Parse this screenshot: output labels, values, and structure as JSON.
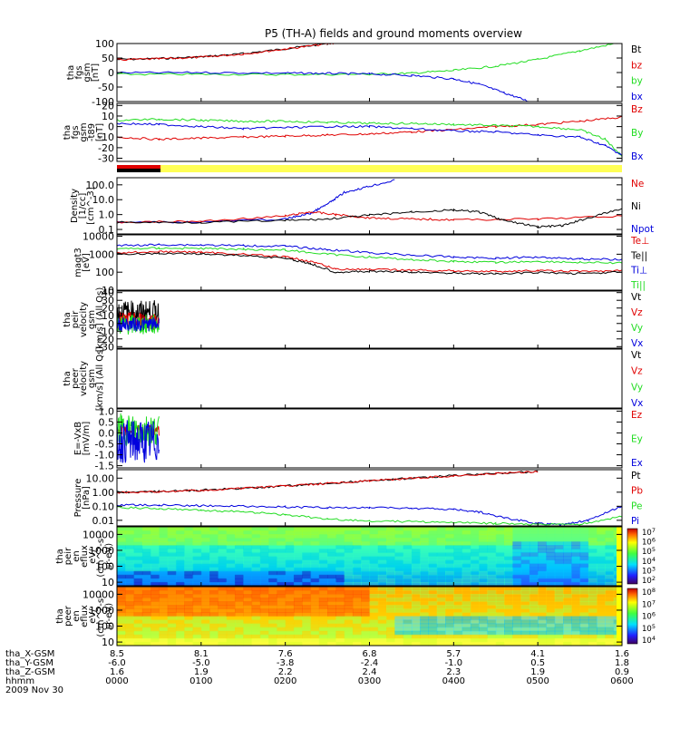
{
  "title": "P5 (TH-A) fields and ground moments overview",
  "colors": {
    "black": "#000000",
    "red": "#e00000",
    "green": "#22dd22",
    "blue": "#0000dd",
    "yellow": "#ffff55"
  },
  "chart_data": [
    {
      "id": "p1",
      "type": "line",
      "ylabel_lines": [
        "tha",
        "fgs",
        "gsm",
        "[nT]"
      ],
      "yticks": [
        [
          "100",
          100
        ],
        [
          "50",
          50
        ],
        [
          "0",
          0
        ],
        [
          "-50",
          -50
        ],
        [
          "-100",
          -100
        ]
      ],
      "ylim": [
        -100,
        100
      ],
      "legend": [
        "Bt",
        "bz",
        "by",
        "bx"
      ],
      "series": [
        {
          "name": "Bt",
          "color": "black",
          "x": [
            0,
            0.5,
            1,
            1.5,
            2,
            2.5,
            2.8
          ],
          "y": [
            45,
            48,
            54,
            65,
            82,
            100,
            110
          ]
        },
        {
          "name": "bz",
          "color": "red",
          "x": [
            0,
            0.5,
            1,
            1.5,
            2,
            2.5,
            2.8
          ],
          "y": [
            44,
            47,
            53,
            64,
            81,
            99,
            109
          ]
        },
        {
          "name": "by",
          "color": "green",
          "x": [
            0,
            1,
            2,
            3,
            3.5,
            4,
            4.5,
            5,
            5.5,
            6
          ],
          "y": [
            -6,
            -6,
            -7,
            -6,
            -2,
            7,
            22,
            45,
            75,
            105
          ]
        },
        {
          "name": "bx",
          "color": "blue",
          "x": [
            0,
            1,
            2,
            2.5,
            3,
            3.5,
            4,
            4.3,
            4.6,
            4.9
          ],
          "y": [
            -1,
            0,
            -2,
            -3,
            -5,
            -10,
            -22,
            -40,
            -70,
            -100
          ]
        }
      ]
    },
    {
      "id": "p2",
      "type": "line",
      "ylabel_lines": [
        "tha",
        "fgs",
        "gsm",
        "-t89",
        "[nT]"
      ],
      "yticks": [
        [
          "20",
          20
        ],
        [
          "10",
          10
        ],
        [
          "0",
          0
        ],
        [
          "-10",
          -10
        ],
        [
          "-20",
          -20
        ],
        [
          "-30",
          -30
        ]
      ],
      "ylim": [
        -33,
        22
      ],
      "legend": [
        "Bz",
        "By",
        "Bx"
      ],
      "series": [
        {
          "name": "Bz",
          "color": "red",
          "x": [
            0,
            0.5,
            1,
            1.5,
            2,
            2.5,
            3,
            3.5,
            4,
            4.5,
            5,
            5.5,
            6
          ],
          "y": [
            -10,
            -12,
            -11,
            -10,
            -9,
            -8,
            -7,
            -5,
            -3,
            0,
            2,
            5,
            9
          ]
        },
        {
          "name": "By",
          "color": "green",
          "x": [
            0,
            0.5,
            1,
            1.5,
            2,
            2.5,
            3,
            3.5,
            4,
            4.5,
            5,
            5.5,
            5.8,
            6
          ],
          "y": [
            6,
            7,
            6,
            5,
            5,
            4,
            3,
            3,
            2,
            1,
            0,
            -3,
            -12,
            -28
          ]
        },
        {
          "name": "Bx",
          "color": "blue",
          "x": [
            0,
            0.5,
            1,
            1.5,
            2,
            2.5,
            3,
            3.5,
            4,
            4.5,
            5,
            5.5,
            5.8,
            6
          ],
          "y": [
            3,
            2,
            0,
            -2,
            -1,
            0,
            0,
            -2,
            -4,
            -5,
            -8,
            -10,
            -18,
            -27
          ]
        }
      ]
    },
    {
      "id": "p3",
      "type": "line",
      "log": true,
      "ylabel_lines": [
        "Density",
        "[1/cc]",
        "[cm^-3]"
      ],
      "yticks": [
        [
          "100.0",
          100
        ],
        [
          "10.0",
          10
        ],
        [
          "1.0",
          1
        ],
        [
          "0.1",
          0.1
        ]
      ],
      "ylim": [
        0.05,
        300
      ],
      "legend": [
        "Ne",
        "Ni",
        "Npot"
      ],
      "series": [
        {
          "name": "Npot",
          "color": "blue",
          "x": [
            0,
            1,
            2,
            2.3,
            2.5,
            2.7,
            3,
            3.3
          ],
          "y": [
            0.3,
            0.32,
            0.5,
            1.2,
            5,
            30,
            80,
            200
          ]
        },
        {
          "name": "Ne",
          "color": "red",
          "x": [
            0,
            1,
            2,
            2.3,
            2.6,
            3,
            3.5,
            4,
            5,
            6
          ],
          "y": [
            0.3,
            0.35,
            0.8,
            1.5,
            1.0,
            0.6,
            0.5,
            0.45,
            0.5,
            0.8
          ]
        },
        {
          "name": "Ni",
          "color": "black",
          "x": [
            0,
            1,
            2,
            2.5,
            3,
            3.5,
            4,
            4.3,
            4.6,
            5,
            5.3,
            5.6,
            6
          ],
          "y": [
            0.3,
            0.3,
            0.4,
            0.5,
            0.9,
            1.5,
            2.0,
            1.5,
            0.4,
            0.15,
            0.18,
            0.6,
            2.5
          ]
        }
      ]
    },
    {
      "id": "p4",
      "type": "line",
      "log": true,
      "ylabel_lines": [
        "magt3",
        "[eV]"
      ],
      "yticks": [
        [
          "10000",
          10000
        ],
        [
          "1000",
          1000
        ],
        [
          "100",
          100
        ],
        [
          "10",
          10
        ]
      ],
      "ylim": [
        10,
        12000
      ],
      "legend": [
        "Te⊥",
        "Te||",
        "Ti⊥",
        "Ti||"
      ],
      "series": [
        {
          "name": "Ti⊥",
          "color": "blue",
          "x": [
            0,
            0.5,
            1,
            1.5,
            2,
            2.5,
            3,
            3.5,
            4,
            4.5,
            5,
            5.5,
            6
          ],
          "y": [
            3000,
            3400,
            3300,
            3000,
            2800,
            1800,
            1200,
            900,
            700,
            600,
            700,
            550,
            500
          ]
        },
        {
          "name": "Ti||",
          "color": "green",
          "x": [
            0,
            0.5,
            1,
            1.5,
            2,
            2.5,
            3,
            3.5,
            4,
            4.5,
            5,
            5.5,
            6
          ],
          "y": [
            2000,
            2200,
            2100,
            1900,
            1700,
            1000,
            700,
            500,
            400,
            350,
            400,
            350,
            320
          ]
        },
        {
          "name": "Te⊥",
          "color": "red",
          "x": [
            0,
            0.5,
            1,
            1.5,
            2,
            2.3,
            2.6,
            3,
            3.5,
            4,
            4.5,
            5,
            5.5,
            6
          ],
          "y": [
            1200,
            1400,
            1300,
            1000,
            700,
            400,
            150,
            140,
            130,
            120,
            110,
            120,
            110,
            120
          ]
        },
        {
          "name": "Te||",
          "color": "black",
          "x": [
            0,
            0.5,
            1,
            1.5,
            2,
            2.3,
            2.6,
            3,
            3.5,
            4,
            4.5,
            5,
            5.5,
            6
          ],
          "y": [
            1000,
            1100,
            1050,
            850,
            600,
            300,
            100,
            110,
            100,
            90,
            80,
            95,
            85,
            100
          ]
        }
      ]
    },
    {
      "id": "p5",
      "type": "line",
      "ylabel_lines": [
        "tha",
        "peir",
        "velocity",
        "gsm",
        "[km/s] (All Qs)"
      ],
      "yticks": [
        [
          "40",
          40
        ],
        [
          "30",
          30
        ],
        [
          "20",
          20
        ],
        [
          "10",
          10
        ],
        [
          "0",
          0
        ],
        [
          "-10",
          -10
        ],
        [
          "-20",
          -20
        ],
        [
          "-30",
          -30
        ]
      ],
      "ylim": [
        -32,
        42
      ],
      "legend": [
        "Vt",
        "Vz",
        "Vy",
        "Vx"
      ],
      "noise": {
        "x_end": 0.5,
        "black": [
          0,
          30
        ],
        "red": [
          -8,
          15
        ],
        "green": [
          -15,
          12
        ],
        "blue": [
          -10,
          8
        ]
      }
    },
    {
      "id": "p6",
      "type": "line",
      "ylabel_lines": [
        "tha",
        "peer",
        "velocity",
        "gsm",
        "[km/s] (All Qs)"
      ],
      "yticks": [],
      "ylim": [
        0,
        1
      ],
      "legend": [
        "Vt",
        "Vz",
        "Vy",
        "Vx"
      ]
    },
    {
      "id": "p7",
      "type": "line",
      "ylabel_lines": [
        "E=-VxB",
        "[mV/m]"
      ],
      "yticks": [
        [
          "1.0",
          1.0
        ],
        [
          "0.5",
          0.5
        ],
        [
          "0.0",
          0
        ],
        [
          "-0.5",
          -0.5
        ],
        [
          "-1.0",
          -1.0
        ],
        [
          "-1.5",
          -1.5
        ]
      ],
      "ylim": [
        -1.6,
        1.1
      ],
      "legend": [
        "Ez",
        "Ey",
        "Ex"
      ],
      "noise": {
        "x_end": 0.5,
        "green": [
          -0.6,
          0.9
        ],
        "blue": [
          -1.4,
          0.6
        ],
        "red": [
          -0.15,
          0.35
        ]
      }
    },
    {
      "id": "p8",
      "type": "line",
      "log": true,
      "ylabel_lines": [
        "Pressure",
        "[nPa]"
      ],
      "yticks": [
        [
          "10.00",
          10
        ],
        [
          "1.00",
          1
        ],
        [
          "0.10",
          0.1
        ],
        [
          "0.01",
          0.01
        ]
      ],
      "ylim": [
        0.004,
        40
      ],
      "legend": [
        "Pt",
        "Pb",
        "Pe",
        "Pi"
      ],
      "series": [
        {
          "name": "Pt",
          "color": "black",
          "x": [
            0,
            0.5,
            1,
            1.5,
            2,
            2.5,
            3,
            3.5,
            4,
            4.5,
            5
          ],
          "y": [
            1.0,
            1.1,
            1.4,
            1.9,
            2.8,
            4.3,
            6.5,
            10,
            15,
            22,
            30
          ]
        },
        {
          "name": "Pb",
          "color": "red",
          "x": [
            0,
            0.5,
            1,
            1.5,
            2,
            2.5,
            3,
            3.5,
            4,
            4.5,
            5
          ],
          "y": [
            0.95,
            1.05,
            1.35,
            1.85,
            2.7,
            4.2,
            6.4,
            9.8,
            14.5,
            21,
            29
          ]
        },
        {
          "name": "Pi",
          "color": "blue",
          "x": [
            0,
            0.5,
            1,
            1.5,
            2,
            2.5,
            3,
            3.5,
            4,
            4.3,
            4.6,
            5,
            5.3,
            5.6,
            6
          ],
          "y": [
            0.12,
            0.12,
            0.11,
            0.1,
            0.09,
            0.08,
            0.08,
            0.07,
            0.06,
            0.04,
            0.015,
            0.006,
            0.005,
            0.01,
            0.1
          ]
        },
        {
          "name": "Pe",
          "color": "green",
          "x": [
            0,
            0.5,
            1,
            1.5,
            2,
            2.5,
            3,
            3.5,
            4,
            4.5,
            5,
            5.5,
            6
          ],
          "y": [
            0.08,
            0.07,
            0.05,
            0.04,
            0.025,
            0.012,
            0.009,
            0.008,
            0.007,
            0.006,
            0.005,
            0.005,
            0.02
          ]
        }
      ]
    },
    {
      "id": "p9",
      "type": "heatmap",
      "log": true,
      "ylabel_lines": [
        "tha",
        "peir",
        "en",
        "eflux",
        "eV/",
        "(cm^2-s-",
        "sr-eV)"
      ],
      "yticks": [
        [
          "10000",
          10000
        ],
        [
          "1000",
          1000
        ],
        [
          "100",
          100
        ],
        [
          "10",
          10
        ]
      ],
      "ylim": [
        6,
        30000
      ],
      "colorbar_ticks": [
        "10^7",
        "10^6",
        "10^5",
        "10^4",
        "10^3",
        "10^2"
      ]
    },
    {
      "id": "p10",
      "type": "heatmap",
      "log": true,
      "ylabel_lines": [
        "tha",
        "peer",
        "en",
        "eflux",
        "eV/",
        "(cm^2-s-",
        "sr-eV)"
      ],
      "yticks": [
        [
          "10000",
          10000
        ],
        [
          "1000",
          1000
        ],
        [
          "100",
          100
        ],
        [
          "10",
          10
        ]
      ],
      "ylim": [
        6,
        30000
      ],
      "colorbar_ticks": [
        "10^8",
        "10^7",
        "10^6",
        "10^5",
        "10^4"
      ]
    }
  ],
  "xaxis": {
    "row_labels": [
      "tha_X-GSM",
      "tha_Y-GSM",
      "tha_Z-GSM",
      "hhmm",
      "2009 Nov 30"
    ],
    "ticks": [
      {
        "x": 0,
        "X": "8.5",
        "Y": "-6.0",
        "Z": "1.6",
        "hhmm": "0000"
      },
      {
        "x": 1,
        "X": "8.1",
        "Y": "-5.0",
        "Z": "1.9",
        "hhmm": "0100"
      },
      {
        "x": 2,
        "X": "7.6",
        "Y": "-3.8",
        "Z": "2.2",
        "hhmm": "0200"
      },
      {
        "x": 3,
        "X": "6.8",
        "Y": "-2.4",
        "Z": "2.4",
        "hhmm": "0300"
      },
      {
        "x": 4,
        "X": "5.7",
        "Y": "-1.0",
        "Z": "2.3",
        "hhmm": "0400"
      },
      {
        "x": 5,
        "X": "4.1",
        "Y": "0.5",
        "Z": "1.9",
        "hhmm": "0500"
      },
      {
        "x": 6,
        "X": "1.6",
        "Y": "1.8",
        "Z": "0.9",
        "hhmm": "0600"
      }
    ]
  }
}
